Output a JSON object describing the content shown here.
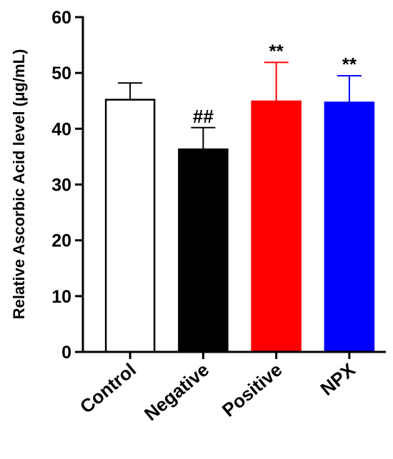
{
  "chart_data": {
    "type": "bar",
    "categories": [
      "Control",
      "Negative",
      "Positive",
      "NPX"
    ],
    "values": [
      45.2,
      36.3,
      44.9,
      44.7
    ],
    "errors": [
      3.0,
      3.9,
      7.0,
      4.8
    ],
    "annotations": [
      "",
      "##",
      "**",
      "**"
    ],
    "colors": [
      "#ffffff",
      "#000000",
      "#ff0000",
      "#0000ff"
    ],
    "edge_colors": [
      "#000000",
      "#000000",
      "#ff0000",
      "#0000ff"
    ],
    "title": "",
    "xlabel": "",
    "ylabel": "Relative Ascorbic Acid level (μg/mL)",
    "ylim": [
      0,
      60
    ],
    "yticks": [
      0,
      10,
      20,
      30,
      40,
      50,
      60
    ],
    "grid": false,
    "legend": "none"
  }
}
